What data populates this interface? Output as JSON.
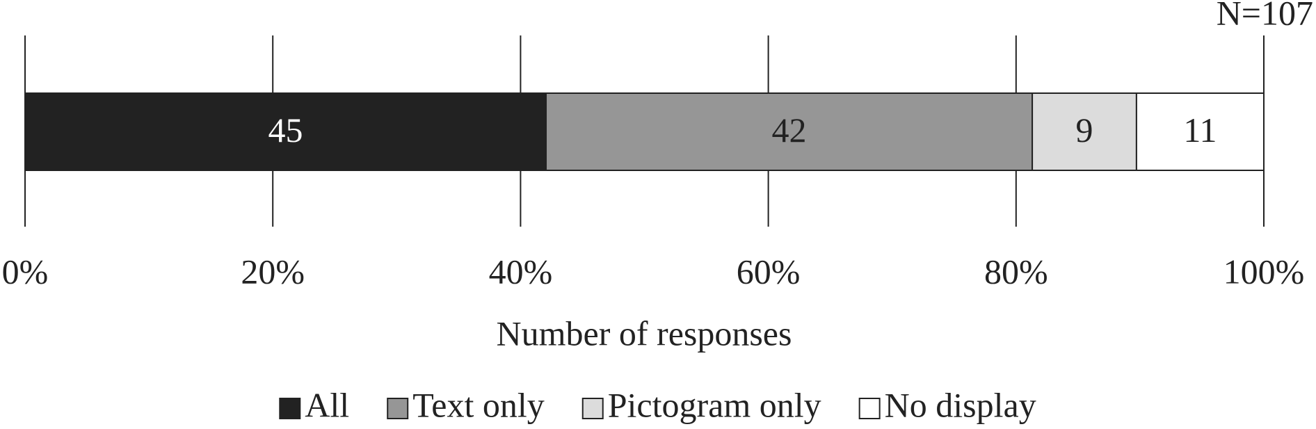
{
  "chart_data": {
    "type": "stacked_percent_bar",
    "annotation": "N=107",
    "xlabel": "Number of responses",
    "xlim": [
      0,
      100
    ],
    "xticks": [
      {
        "value": 0,
        "label": "0%"
      },
      {
        "value": 20,
        "label": "20%"
      },
      {
        "value": 40,
        "label": "40%"
      },
      {
        "value": 60,
        "label": "60%"
      },
      {
        "value": 80,
        "label": "80%"
      },
      {
        "value": 100,
        "label": "100%"
      }
    ],
    "grid": true,
    "legend": "bottom",
    "series": [
      {
        "name": "All",
        "color": "#222222",
        "values": [
          45
        ]
      },
      {
        "name": "Text only",
        "color": "#969696",
        "values": [
          42
        ]
      },
      {
        "name": "Pictogram only",
        "color": "#dcdcdc",
        "values": [
          9
        ]
      },
      {
        "name": "No display",
        "color": "#ffffff",
        "values": [
          11
        ]
      }
    ]
  }
}
